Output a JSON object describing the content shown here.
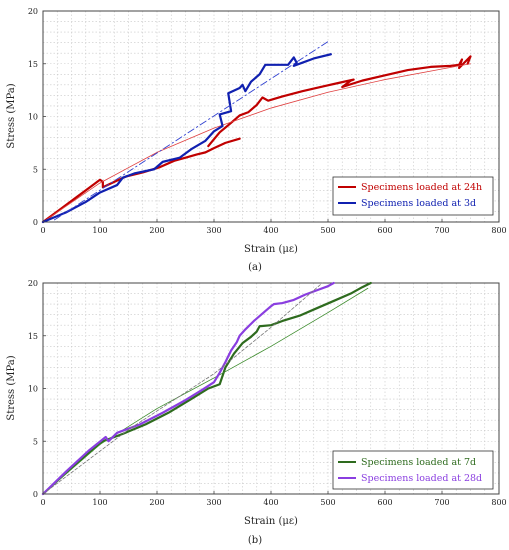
{
  "chart_data": [
    {
      "type": "line",
      "panel_label": "(a)",
      "xlabel": "Strain (με)",
      "ylabel": "Stress (MPa)",
      "xlim": [
        0,
        800
      ],
      "ylim": [
        0,
        20
      ],
      "xticks": [
        "0",
        "100",
        "200",
        "300",
        "400",
        "500",
        "600",
        "700",
        "800"
      ],
      "yticks": [
        "0",
        "5",
        "10",
        "15",
        "20"
      ],
      "grid": true,
      "legend_position": "bottom-right",
      "series": [
        {
          "name": "Specimens loaded at 24h",
          "color": "#c00000",
          "style": "solid",
          "width": 2.2,
          "points": [
            [
              0,
              0
            ],
            [
              30,
              1.2
            ],
            [
              60,
              2.4
            ],
            [
              85,
              3.4
            ],
            [
              100,
              4.0
            ],
            [
              105,
              3.8
            ],
            [
              105,
              3.3
            ],
            [
              125,
              3.8
            ],
            [
              145,
              4.3
            ],
            [
              175,
              4.7
            ],
            [
              205,
              5.2
            ],
            [
              230,
              5.8
            ],
            [
              250,
              6.1
            ],
            [
              270,
              6.4
            ],
            [
              285,
              6.6
            ],
            [
              300,
              7.0
            ],
            [
              320,
              7.5
            ],
            [
              345,
              7.9
            ]
          ]
        },
        {
          "name": "",
          "color": "#c00000",
          "style": "solid",
          "width": 2.2,
          "points": [
            [
              290,
              7.2
            ],
            [
              310,
              8.5
            ],
            [
              330,
              9.4
            ],
            [
              345,
              10.1
            ],
            [
              360,
              10.4
            ],
            [
              375,
              11.1
            ],
            [
              385,
              11.8
            ],
            [
              395,
              11.5
            ],
            [
              420,
              11.9
            ],
            [
              455,
              12.4
            ],
            [
              495,
              12.9
            ],
            [
              520,
              13.2
            ],
            [
              545,
              13.5
            ],
            [
              540,
              13.4
            ],
            [
              525,
              12.8
            ],
            [
              560,
              13.4
            ],
            [
              600,
              13.9
            ],
            [
              640,
              14.4
            ],
            [
              680,
              14.7
            ],
            [
              715,
              14.8
            ],
            [
              730,
              14.9
            ],
            [
              735,
              15.4
            ],
            [
              730,
              14.6
            ],
            [
              750,
              15.7
            ],
            [
              745,
              15.0
            ]
          ]
        },
        {
          "name": "",
          "color": "#e04040",
          "style": "solid",
          "width": 0.8,
          "points": [
            [
              0,
              0
            ],
            [
              100,
              3.7
            ],
            [
              200,
              6.6
            ],
            [
              300,
              8.9
            ],
            [
              400,
              10.8
            ],
            [
              500,
              12.3
            ],
            [
              600,
              13.5
            ],
            [
              700,
              14.5
            ],
            [
              750,
              15.0
            ]
          ]
        },
        {
          "name": "Specimens loaded at 3d",
          "color": "#1020b0",
          "style": "solid",
          "width": 2.2,
          "points": [
            [
              0,
              0
            ],
            [
              40,
              0.9
            ],
            [
              75,
              1.9
            ],
            [
              100,
              2.8
            ],
            [
              130,
              3.5
            ],
            [
              140,
              4.2
            ],
            [
              160,
              4.6
            ],
            [
              195,
              5.0
            ],
            [
              210,
              5.7
            ],
            [
              240,
              6.1
            ],
            [
              260,
              6.9
            ],
            [
              285,
              7.7
            ],
            [
              300,
              8.6
            ],
            [
              315,
              9.1
            ],
            [
              310,
              10.2
            ],
            [
              330,
              10.5
            ],
            [
              325,
              12.2
            ],
            [
              345,
              12.7
            ],
            [
              350,
              13.0
            ],
            [
              355,
              12.4
            ],
            [
              365,
              13.3
            ],
            [
              380,
              14.0
            ],
            [
              390,
              14.9
            ],
            [
              410,
              14.9
            ],
            [
              430,
              14.9
            ],
            [
              440,
              15.6
            ],
            [
              445,
              15.1
            ],
            [
              440,
              14.8
            ],
            [
              455,
              15.1
            ],
            [
              475,
              15.5
            ],
            [
              505,
              15.9
            ]
          ]
        },
        {
          "name": "",
          "color": "#3040d0",
          "style": "dashdot",
          "width": 0.9,
          "points": [
            [
              20,
              0.2
            ],
            [
              500,
              17.1
            ]
          ]
        }
      ]
    },
    {
      "type": "line",
      "panel_label": "(b)",
      "xlabel": "Strain (με)",
      "ylabel": "Stress (MPa)",
      "xlim": [
        0,
        800
      ],
      "ylim": [
        0,
        20
      ],
      "xticks": [
        "0",
        "100",
        "200",
        "300",
        "400",
        "500",
        "600",
        "700",
        "800"
      ],
      "yticks": [
        "0",
        "5",
        "10",
        "15",
        "20"
      ],
      "grid": true,
      "legend_position": "bottom-right",
      "series": [
        {
          "name": "Specimens loaded at 7d",
          "color": "#2e6b1e",
          "style": "solid",
          "width": 2.2,
          "points": [
            [
              0,
              0
            ],
            [
              40,
              2.0
            ],
            [
              80,
              3.9
            ],
            [
              105,
              5.0
            ],
            [
              140,
              5.7
            ],
            [
              180,
              6.6
            ],
            [
              220,
              7.7
            ],
            [
              260,
              9.0
            ],
            [
              290,
              10.0
            ],
            [
              310,
              10.4
            ],
            [
              315,
              11.2
            ],
            [
              320,
              12.0
            ],
            [
              335,
              13.3
            ],
            [
              350,
              14.3
            ],
            [
              365,
              14.9
            ],
            [
              375,
              15.4
            ],
            [
              380,
              15.9
            ],
            [
              400,
              16.0
            ],
            [
              420,
              16.4
            ],
            [
              450,
              16.9
            ],
            [
              480,
              17.6
            ],
            [
              510,
              18.3
            ],
            [
              540,
              19.0
            ],
            [
              560,
              19.6
            ],
            [
              575,
              20.0
            ]
          ]
        },
        {
          "name": "",
          "color": "#3a8a2a",
          "style": "solid",
          "width": 0.8,
          "points": [
            [
              0,
              0
            ],
            [
              100,
              4.7
            ],
            [
              200,
              8.1
            ],
            [
              300,
              11.0
            ],
            [
              400,
              14.0
            ],
            [
              500,
              17.2
            ],
            [
              570,
              19.5
            ]
          ]
        },
        {
          "name": "Specimens loaded at 28d",
          "color": "#8a3ee0",
          "style": "solid",
          "width": 2.2,
          "points": [
            [
              0,
              0
            ],
            [
              40,
              2.1
            ],
            [
              80,
              4.1
            ],
            [
              110,
              5.4
            ],
            [
              115,
              5.0
            ],
            [
              130,
              5.8
            ],
            [
              170,
              6.6
            ],
            [
              210,
              7.7
            ],
            [
              250,
              8.9
            ],
            [
              280,
              9.9
            ],
            [
              300,
              10.6
            ],
            [
              310,
              11.5
            ],
            [
              320,
              12.5
            ],
            [
              330,
              13.6
            ],
            [
              340,
              14.4
            ],
            [
              345,
              15.0
            ],
            [
              355,
              15.6
            ],
            [
              370,
              16.4
            ],
            [
              385,
              17.1
            ],
            [
              400,
              17.8
            ],
            [
              405,
              18.0
            ],
            [
              420,
              18.1
            ],
            [
              440,
              18.4
            ],
            [
              460,
              18.9
            ],
            [
              480,
              19.3
            ],
            [
              500,
              19.7
            ],
            [
              510,
              20.0
            ]
          ]
        },
        {
          "name": "",
          "color": "#777777",
          "style": "dashed",
          "width": 0.8,
          "points": [
            [
              0,
              0
            ],
            [
              150,
              6.1
            ],
            [
              300,
              11.4
            ],
            [
              400,
              15.8
            ],
            [
              490,
              20.0
            ]
          ]
        }
      ]
    }
  ]
}
